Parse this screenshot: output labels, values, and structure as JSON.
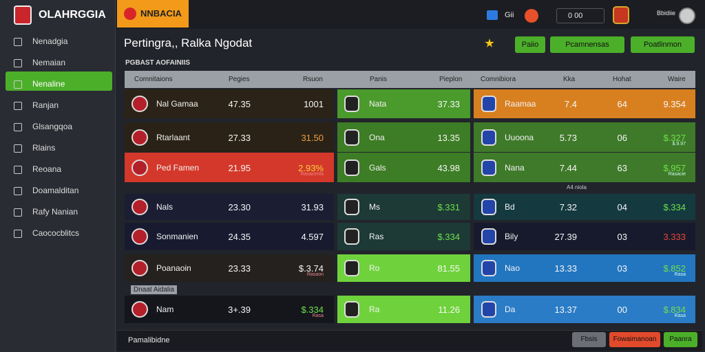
{
  "brand": "OLAHRGGIA",
  "tab": "NNBACIA",
  "nav": {
    "active": 2,
    "items": [
      "Nenadgia",
      "Nemaian",
      "Nenaline",
      "Ranjan",
      "Glsangqoa",
      "Rlains",
      "Reoana",
      "Doamalditan",
      "Rafy Nanian",
      "Caococblitcs"
    ]
  },
  "topbar": {
    "notify": "Gii",
    "search": "0 00",
    "user": "Bbidiie"
  },
  "title": "Pertingra,, Ralka Ngodat",
  "actions": [
    "Paiio",
    "Pcamnensas",
    "Poatlinmon"
  ],
  "section": "PGBAST AOFAINIIS",
  "columns": [
    "Comnitaions",
    "Pegies",
    "Rsuon",
    "Panis",
    "Pieplon",
    "Comnibiora",
    "Kka",
    "Hohat",
    "Waire"
  ],
  "dividers": [
    "A4 niola",
    "Dnaat Aidalia"
  ],
  "rows": [
    {
      "colors": [
        "#2b2317",
        "#4a9a2c",
        "#d88020"
      ],
      "left": {
        "name": "Nal Gamaa",
        "a": "47.35",
        "b": "1001"
      },
      "mid": {
        "name": "Nata",
        "v": "37.33"
      },
      "right": {
        "name": "Raamaa",
        "a": "7.4",
        "b": "64",
        "c": "9.354"
      }
    },
    {
      "colors": [
        "#2a2216",
        "#3d7d25",
        "#3f7a2a"
      ],
      "left": {
        "name": "Rtarlaant",
        "a": "27.33",
        "b": "31.50",
        "bColor": "#f0a040"
      },
      "mid": {
        "name": "Ona",
        "v": "13.35"
      },
      "right": {
        "name": "Uuoona",
        "a": "5.73",
        "b": "06",
        "c": "$.327",
        "cColor": "#6ee04a",
        "cSub": "$.9.97"
      }
    },
    {
      "colors": [
        "#d4382a",
        "#3d7d25",
        "#3f7a2a"
      ],
      "left": {
        "name": "Ped Famen",
        "a": "21.95",
        "b": "2.93%",
        "bColor": "#f5d040",
        "bSub": "Rasacenfa"
      },
      "mid": {
        "name": "Gals",
        "v": "43.98"
      },
      "right": {
        "name": "Nana",
        "a": "7.44",
        "b": "63",
        "c": "$.957",
        "cColor": "#6ee04a",
        "cSub": "Rasacie"
      }
    },
    {
      "colors": [
        "#1b1d33",
        "#1d3a36",
        "#143a40"
      ],
      "left": {
        "name": "Nals",
        "a": "23.30",
        "b": "31.93"
      },
      "mid": {
        "name": "Ms",
        "v": "$.331",
        "vColor": "#6ee04a"
      },
      "right": {
        "name": "Bd",
        "a": "7.32",
        "b": "04",
        "c": "$.334",
        "cColor": "#6ee04a"
      }
    },
    {
      "colors": [
        "#181b30",
        "#1d3a36",
        "#171a2c"
      ],
      "left": {
        "name": "Sonmanien",
        "a": "24.35",
        "b": "4.597"
      },
      "mid": {
        "name": "Ras",
        "v": "$.334",
        "vColor": "#6ee04a"
      },
      "right": {
        "name": "Bily",
        "a": "27.39",
        "b": "03",
        "c": "3.333",
        "cColor": "#e5483a"
      }
    },
    {
      "colors": [
        "#25211f",
        "#6fd23c",
        "#2276c0"
      ],
      "left": {
        "name": "Poanaoin",
        "a": "23.33",
        "b": "$.3.74",
        "bSub": "Rasaon"
      },
      "mid": {
        "name": "Ro",
        "v": "81.55"
      },
      "right": {
        "name": "Nao",
        "a": "13.33",
        "b": "03",
        "c": "$.852",
        "cColor": "#6ee04a",
        "cSub": "Rasa"
      }
    },
    {
      "colors": [
        "#15161c",
        "#6fd23c",
        "#2a7cc6"
      ],
      "left": {
        "name": "Nam",
        "a": "3+.39",
        "b": "$.334",
        "bColor": "#6ee04a",
        "bSub": "Rasa"
      },
      "mid": {
        "name": "Ra",
        "v": "11.26"
      },
      "right": {
        "name": "Da",
        "a": "13.37",
        "b": "00",
        "c": "$.834",
        "cColor": "#6ee04a",
        "cSub": "Rasa"
      }
    }
  ],
  "footer": {
    "label": "Pamalibidne",
    "buttons": [
      "Fbsis",
      "Fowaimanoan",
      "Paanra"
    ]
  }
}
